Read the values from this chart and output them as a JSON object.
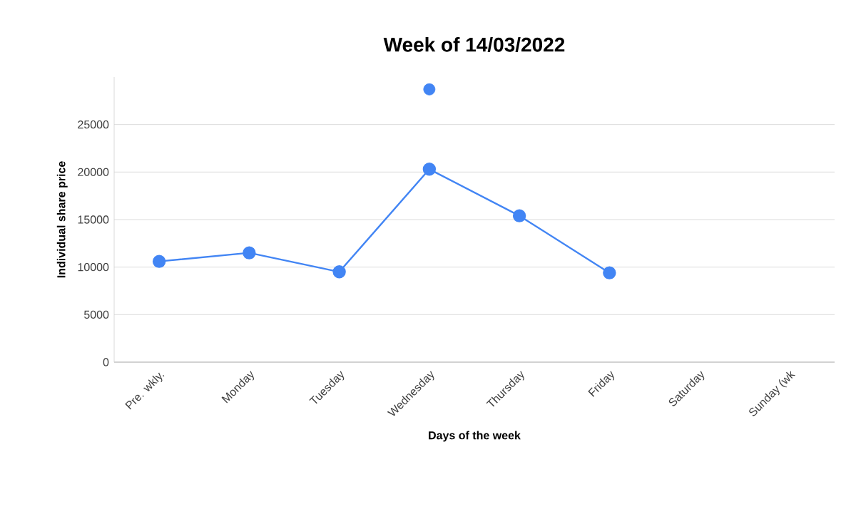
{
  "chart_data": {
    "type": "line",
    "title": "Week of 14/03/2022",
    "xlabel": "Days of the week",
    "ylabel": "Individual share price",
    "categories": [
      "Pre. wkly.",
      "Monday",
      "Tuesday",
      "Wednesday",
      "Thursday",
      "Friday",
      "Saturday",
      "Sunday (wk"
    ],
    "series": [
      {
        "color": "#4285f4",
        "values": [
          10600,
          11500,
          9500,
          20300,
          15400,
          9400,
          null,
          null
        ]
      },
      {
        "type": "scatter",
        "color": "#4285f4",
        "values": [
          null,
          null,
          null,
          28700,
          null,
          null,
          null,
          null
        ]
      }
    ],
    "ylim": [
      0,
      30000
    ],
    "yticks": [
      0,
      5000,
      10000,
      15000,
      20000,
      25000
    ],
    "grid": "y",
    "marker": "circle"
  }
}
